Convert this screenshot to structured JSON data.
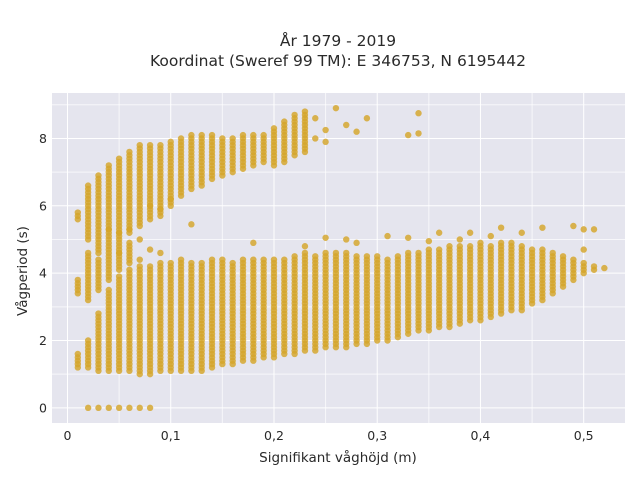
{
  "chart_data": {
    "type": "scatter",
    "title_lines": [
      "År 1979 - 2019",
      "Koordinat (Sweref 99 TM): E 346753, N 6195442"
    ],
    "xlabel": "Signifikant våghöjd (m)",
    "ylabel": "Vågperiod (s)",
    "xlim": [
      -0.015,
      0.54
    ],
    "ylim": [
      -0.45,
      9.35
    ],
    "x_ticks": [
      0,
      0.1,
      0.2,
      0.3,
      0.4,
      0.5
    ],
    "x_tick_labels": [
      "0",
      "0,1",
      "0,2",
      "0,3",
      "0,4",
      "0,5"
    ],
    "y_ticks": [
      0,
      2,
      4,
      6,
      8
    ],
    "y_tick_labels": [
      "0",
      "2",
      "4",
      "6",
      "8"
    ],
    "grid": true,
    "plot_background": "#e5e5ee",
    "marker_color": "#d4a52a",
    "columns": [
      {
        "x": 0.01,
        "segments": [
          [
            1.2,
            1.6
          ],
          [
            3.4,
            3.8
          ],
          [
            5.6,
            5.8
          ]
        ]
      },
      {
        "x": 0.02,
        "segments": [
          [
            1.2,
            2.0
          ],
          [
            3.2,
            4.6
          ],
          [
            5.0,
            6.6
          ]
        ],
        "extra": [
          0
        ]
      },
      {
        "x": 0.03,
        "segments": [
          [
            1.1,
            2.8
          ],
          [
            3.5,
            4.3
          ],
          [
            4.6,
            6.9
          ]
        ],
        "extra": [
          0
        ]
      },
      {
        "x": 0.04,
        "segments": [
          [
            1.1,
            3.5
          ],
          [
            3.8,
            4.9
          ],
          [
            5.0,
            7.2
          ]
        ],
        "extra": [
          0
        ]
      },
      {
        "x": 0.05,
        "segments": [
          [
            1.1,
            3.9
          ],
          [
            4.1,
            4.9
          ],
          [
            5.0,
            7.4
          ]
        ],
        "extra": [
          0
        ]
      },
      {
        "x": 0.06,
        "segments": [
          [
            1.1,
            4.1
          ],
          [
            4.3,
            4.8
          ],
          [
            5.2,
            7.6
          ]
        ],
        "extra": [
          0
        ]
      },
      {
        "x": 0.07,
        "segments": [
          [
            1.0,
            4.2
          ],
          [
            5.4,
            7.8
          ]
        ],
        "extra": [
          0
        ]
      },
      {
        "x": 0.08,
        "segments": [
          [
            1.0,
            4.2
          ],
          [
            5.6,
            7.8
          ]
        ],
        "extra": [
          0
        ]
      },
      {
        "x": 0.09,
        "segments": [
          [
            1.1,
            4.3
          ],
          [
            5.7,
            7.8
          ]
        ]
      },
      {
        "x": 0.1,
        "segments": [
          [
            1.1,
            4.3
          ],
          [
            6.0,
            7.9
          ]
        ]
      },
      {
        "x": 0.11,
        "segments": [
          [
            1.1,
            4.4
          ],
          [
            6.3,
            8.0
          ]
        ]
      },
      {
        "x": 0.12,
        "segments": [
          [
            1.1,
            4.3
          ],
          [
            6.5,
            8.1
          ]
        ]
      },
      {
        "x": 0.13,
        "segments": [
          [
            1.1,
            4.3
          ],
          [
            6.6,
            8.1
          ]
        ]
      },
      {
        "x": 0.14,
        "segments": [
          [
            1.2,
            4.4
          ],
          [
            6.8,
            8.1
          ]
        ]
      },
      {
        "x": 0.15,
        "segments": [
          [
            1.3,
            4.4
          ],
          [
            6.9,
            8.0
          ]
        ]
      },
      {
        "x": 0.16,
        "segments": [
          [
            1.3,
            4.3
          ],
          [
            7.0,
            8.0
          ]
        ]
      },
      {
        "x": 0.17,
        "segments": [
          [
            1.4,
            4.4
          ],
          [
            7.1,
            8.1
          ]
        ]
      },
      {
        "x": 0.18,
        "segments": [
          [
            1.4,
            4.4
          ],
          [
            7.2,
            8.1
          ]
        ]
      },
      {
        "x": 0.19,
        "segments": [
          [
            1.5,
            4.4
          ],
          [
            7.3,
            8.1
          ]
        ]
      },
      {
        "x": 0.2,
        "segments": [
          [
            1.5,
            4.4
          ],
          [
            7.2,
            8.3
          ]
        ]
      },
      {
        "x": 0.21,
        "segments": [
          [
            1.6,
            4.4
          ],
          [
            7.3,
            8.5
          ]
        ]
      },
      {
        "x": 0.22,
        "segments": [
          [
            1.6,
            4.5
          ],
          [
            7.5,
            8.7
          ]
        ]
      },
      {
        "x": 0.23,
        "segments": [
          [
            1.7,
            4.6
          ],
          [
            7.6,
            8.8
          ]
        ]
      },
      {
        "x": 0.24,
        "segments": [
          [
            1.7,
            4.5
          ]
        ]
      },
      {
        "x": 0.25,
        "segments": [
          [
            1.8,
            4.6
          ]
        ]
      },
      {
        "x": 0.26,
        "segments": [
          [
            1.8,
            4.6
          ]
        ]
      },
      {
        "x": 0.27,
        "segments": [
          [
            1.8,
            4.6
          ]
        ]
      },
      {
        "x": 0.28,
        "segments": [
          [
            1.9,
            4.5
          ]
        ]
      },
      {
        "x": 0.29,
        "segments": [
          [
            1.9,
            4.5
          ]
        ]
      },
      {
        "x": 0.3,
        "segments": [
          [
            2.0,
            4.5
          ]
        ]
      },
      {
        "x": 0.31,
        "segments": [
          [
            2.0,
            4.4
          ]
        ]
      },
      {
        "x": 0.32,
        "segments": [
          [
            2.1,
            4.5
          ]
        ]
      },
      {
        "x": 0.33,
        "segments": [
          [
            2.2,
            4.6
          ]
        ]
      },
      {
        "x": 0.34,
        "segments": [
          [
            2.3,
            4.6
          ]
        ]
      },
      {
        "x": 0.35,
        "segments": [
          [
            2.3,
            4.7
          ]
        ]
      },
      {
        "x": 0.36,
        "segments": [
          [
            2.4,
            4.7
          ]
        ]
      },
      {
        "x": 0.37,
        "segments": [
          [
            2.4,
            4.8
          ]
        ]
      },
      {
        "x": 0.38,
        "segments": [
          [
            2.5,
            4.8
          ]
        ]
      },
      {
        "x": 0.39,
        "segments": [
          [
            2.6,
            4.8
          ]
        ]
      },
      {
        "x": 0.4,
        "segments": [
          [
            2.6,
            4.9
          ]
        ]
      },
      {
        "x": 0.41,
        "segments": [
          [
            2.7,
            4.8
          ]
        ]
      },
      {
        "x": 0.42,
        "segments": [
          [
            2.8,
            4.9
          ]
        ]
      },
      {
        "x": 0.43,
        "segments": [
          [
            2.9,
            4.9
          ]
        ]
      },
      {
        "x": 0.44,
        "segments": [
          [
            2.9,
            4.8
          ]
        ]
      },
      {
        "x": 0.45,
        "segments": [
          [
            3.1,
            4.7
          ]
        ]
      },
      {
        "x": 0.46,
        "segments": [
          [
            3.2,
            4.7
          ]
        ]
      },
      {
        "x": 0.47,
        "segments": [
          [
            3.4,
            4.6
          ]
        ]
      },
      {
        "x": 0.48,
        "segments": [
          [
            3.6,
            4.5
          ]
        ]
      },
      {
        "x": 0.49,
        "segments": [
          [
            3.8,
            4.4
          ]
        ]
      },
      {
        "x": 0.5,
        "segments": [
          [
            4.0,
            4.3
          ]
        ]
      },
      {
        "x": 0.51,
        "segments": [
          [
            4.1,
            4.2
          ]
        ]
      },
      {
        "x": 0.52,
        "segments": [
          [
            4.15,
            4.15
          ]
        ]
      }
    ],
    "outliers": [
      [
        0.18,
        4.9
      ],
      [
        0.23,
        4.8
      ],
      [
        0.25,
        5.05
      ],
      [
        0.27,
        5.0
      ],
      [
        0.28,
        4.9
      ],
      [
        0.31,
        5.1
      ],
      [
        0.33,
        5.05
      ],
      [
        0.35,
        4.95
      ],
      [
        0.36,
        5.2
      ],
      [
        0.38,
        5.0
      ],
      [
        0.39,
        5.2
      ],
      [
        0.41,
        5.1
      ],
      [
        0.42,
        5.35
      ],
      [
        0.44,
        5.2
      ],
      [
        0.46,
        5.35
      ],
      [
        0.49,
        5.4
      ],
      [
        0.5,
        5.3
      ],
      [
        0.51,
        5.3
      ],
      [
        0.5,
        4.7
      ],
      [
        0.12,
        5.45
      ],
      [
        0.1,
        6.2
      ],
      [
        0.08,
        6.0
      ],
      [
        0.09,
        5.9
      ],
      [
        0.24,
        8.6
      ],
      [
        0.25,
        8.25
      ],
      [
        0.26,
        8.9
      ],
      [
        0.27,
        8.4
      ],
      [
        0.28,
        8.2
      ],
      [
        0.29,
        8.6
      ],
      [
        0.25,
        7.9
      ],
      [
        0.24,
        8.0
      ],
      [
        0.33,
        8.1
      ],
      [
        0.34,
        8.15
      ],
      [
        0.34,
        8.75
      ],
      [
        0.03,
        4.4
      ],
      [
        0.04,
        5.3
      ],
      [
        0.05,
        5.2
      ],
      [
        0.06,
        5.3
      ],
      [
        0.07,
        5.0
      ],
      [
        0.08,
        4.7
      ],
      [
        0.09,
        4.6
      ],
      [
        0.07,
        4.4
      ],
      [
        0.06,
        4.9
      ],
      [
        0.05,
        4.6
      ]
    ]
  }
}
